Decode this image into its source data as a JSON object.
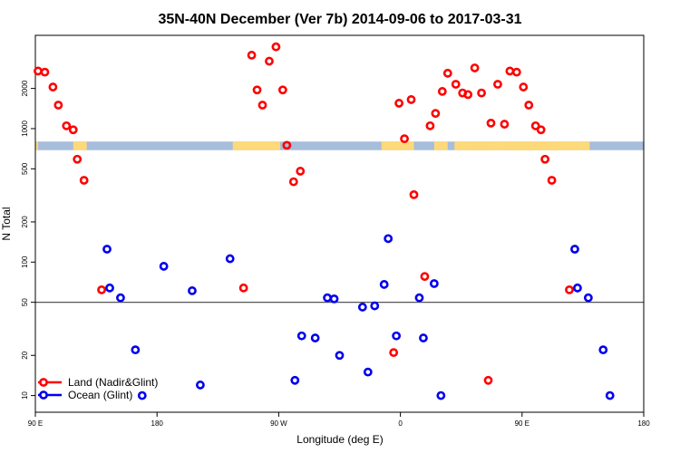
{
  "chart_data": {
    "type": "scatter",
    "title": "35N-40N December (Ver 7b)   2014-09-06 to 2017-03-31",
    "xlabel": "Longitude (deg E)",
    "ylabel": "N Total",
    "x_scale": "linear",
    "y_scale": "log",
    "xlim": [
      90,
      540
    ],
    "ylim": [
      7.5,
      5000
    ],
    "x_ticks": [
      {
        "value": 90,
        "label": "90 E"
      },
      {
        "value": 180,
        "label": "180"
      },
      {
        "value": 270,
        "label": "90 W"
      },
      {
        "value": 360,
        "label": "0"
      },
      {
        "value": 450,
        "label": "90 E"
      },
      {
        "value": 540,
        "label": "180"
      }
    ],
    "y_ticks": [
      {
        "value": 10,
        "label": "10"
      },
      {
        "value": 20,
        "label": "20"
      },
      {
        "value": 50,
        "label": "50"
      },
      {
        "value": 100,
        "label": "100"
      },
      {
        "value": 200,
        "label": "200"
      },
      {
        "value": 500,
        "label": "500"
      },
      {
        "value": 1000,
        "label": "1000"
      },
      {
        "value": 2000,
        "label": "2000"
      }
    ],
    "reference_line": {
      "y": 50,
      "color": "#555555"
    },
    "surface_band": {
      "y_range": [
        690,
        800
      ],
      "ocean_color": "#a6bddb",
      "land_color": "#fdd97a",
      "land_ranges": [
        [
          90,
          92
        ],
        [
          118,
          128
        ],
        [
          236,
          271
        ],
        [
          346,
          370
        ],
        [
          385,
          395
        ],
        [
          400,
          428
        ],
        [
          436,
          480
        ],
        [
          410,
          500
        ]
      ]
    },
    "legend": {
      "position": "bottom-left",
      "entries": [
        {
          "label": "Land (Nadir&Glint)",
          "color": "#ff0000"
        },
        {
          "label": "Ocean (Glint)",
          "color": "#0000ee"
        }
      ]
    },
    "series": [
      {
        "name": "Land (Nadir&Glint)",
        "color": "#ff0000",
        "points": [
          {
            "x": 92,
            "y": 2700
          },
          {
            "x": 97,
            "y": 2650
          },
          {
            "x": 103,
            "y": 2050
          },
          {
            "x": 107,
            "y": 1500
          },
          {
            "x": 113,
            "y": 1050
          },
          {
            "x": 118,
            "y": 980
          },
          {
            "x": 121,
            "y": 590
          },
          {
            "x": 126,
            "y": 410
          },
          {
            "x": 139,
            "y": 62
          },
          {
            "x": 244,
            "y": 64
          },
          {
            "x": 250,
            "y": 3550
          },
          {
            "x": 254,
            "y": 1950
          },
          {
            "x": 258,
            "y": 1500
          },
          {
            "x": 263,
            "y": 3200
          },
          {
            "x": 268,
            "y": 4100
          },
          {
            "x": 273,
            "y": 1950
          },
          {
            "x": 276,
            "y": 750
          },
          {
            "x": 281,
            "y": 400
          },
          {
            "x": 286,
            "y": 480
          },
          {
            "x": 355,
            "y": 21
          },
          {
            "x": 359,
            "y": 1550
          },
          {
            "x": 363,
            "y": 840
          },
          {
            "x": 368,
            "y": 1650
          },
          {
            "x": 370,
            "y": 320
          },
          {
            "x": 378,
            "y": 78
          },
          {
            "x": 382,
            "y": 1050
          },
          {
            "x": 386,
            "y": 1300
          },
          {
            "x": 391,
            "y": 1900
          },
          {
            "x": 395,
            "y": 2600
          },
          {
            "x": 401,
            "y": 2150
          },
          {
            "x": 406,
            "y": 1850
          },
          {
            "x": 410,
            "y": 1800
          },
          {
            "x": 415,
            "y": 2850
          },
          {
            "x": 420,
            "y": 1850
          },
          {
            "x": 425,
            "y": 13
          },
          {
            "x": 427,
            "y": 1100
          },
          {
            "x": 432,
            "y": 2150
          },
          {
            "x": 437,
            "y": 1080
          },
          {
            "x": 441,
            "y": 2700
          },
          {
            "x": 446,
            "y": 2650
          },
          {
            "x": 451,
            "y": 2050
          },
          {
            "x": 455,
            "y": 1500
          },
          {
            "x": 460,
            "y": 1050
          },
          {
            "x": 464,
            "y": 980
          },
          {
            "x": 467,
            "y": 590
          },
          {
            "x": 472,
            "y": 410
          },
          {
            "x": 485,
            "y": 62
          }
        ]
      },
      {
        "name": "Ocean (Glint)",
        "color": "#0000ee",
        "points": [
          {
            "x": 143,
            "y": 125
          },
          {
            "x": 145,
            "y": 64
          },
          {
            "x": 153,
            "y": 54
          },
          {
            "x": 164,
            "y": 22
          },
          {
            "x": 169,
            "y": 10
          },
          {
            "x": 185,
            "y": 93
          },
          {
            "x": 206,
            "y": 61
          },
          {
            "x": 212,
            "y": 12
          },
          {
            "x": 234,
            "y": 106
          },
          {
            "x": 282,
            "y": 13
          },
          {
            "x": 287,
            "y": 28
          },
          {
            "x": 297,
            "y": 27
          },
          {
            "x": 306,
            "y": 54
          },
          {
            "x": 311,
            "y": 53
          },
          {
            "x": 315,
            "y": 20
          },
          {
            "x": 332,
            "y": 46
          },
          {
            "x": 336,
            "y": 15
          },
          {
            "x": 341,
            "y": 47
          },
          {
            "x": 348,
            "y": 68
          },
          {
            "x": 351,
            "y": 150
          },
          {
            "x": 357,
            "y": 28
          },
          {
            "x": 374,
            "y": 54
          },
          {
            "x": 377,
            "y": 27
          },
          {
            "x": 385,
            "y": 69
          },
          {
            "x": 390,
            "y": 10
          },
          {
            "x": 489,
            "y": 125
          },
          {
            "x": 491,
            "y": 64
          },
          {
            "x": 499,
            "y": 54
          },
          {
            "x": 510,
            "y": 22
          },
          {
            "x": 515,
            "y": 10
          }
        ]
      }
    ]
  }
}
